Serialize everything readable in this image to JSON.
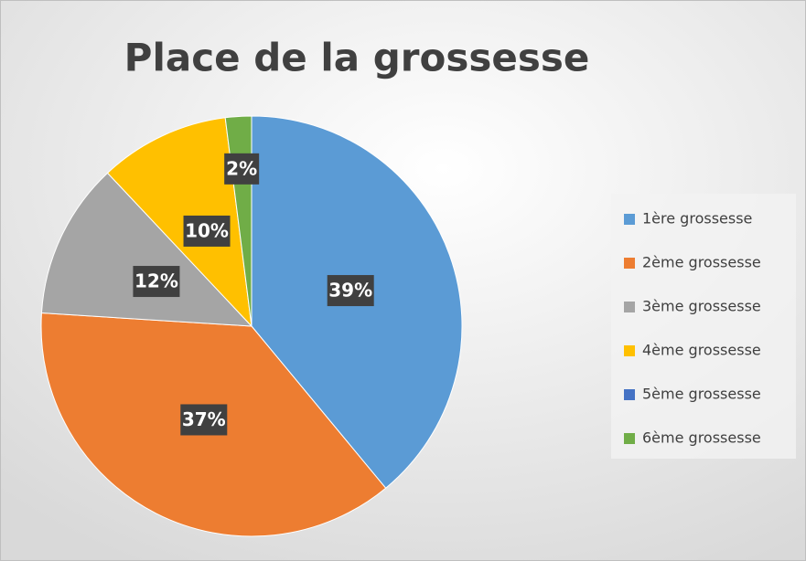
{
  "chart_data": {
    "type": "pie",
    "title": "Place de la grossesse",
    "categories": [
      "1ère grossesse",
      "2ème grossesse",
      "3ème grossesse",
      "4ème grossesse",
      "5ème grossesse",
      "6ème grossesse"
    ],
    "values": [
      39,
      37,
      12,
      10,
      0,
      2
    ],
    "value_labels": [
      "39%",
      "37%",
      "12%",
      "10%",
      null,
      "2%"
    ],
    "colors": [
      "#5b9bd5",
      "#ed7d31",
      "#a5a5a5",
      "#ffc000",
      "#4472c4",
      "#70ad47"
    ],
    "legend": "right"
  }
}
